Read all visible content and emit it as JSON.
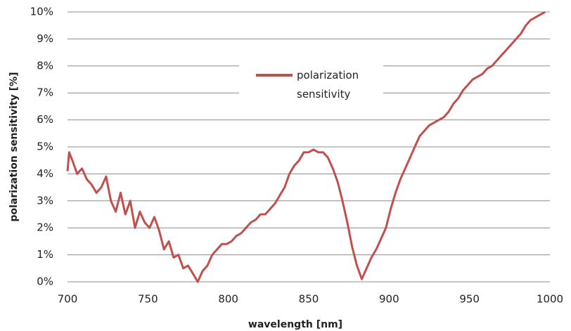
{
  "chart_data": {
    "type": "line",
    "xlabel": "wavelength [nm]",
    "ylabel": "polarization sensitivity [%]",
    "xlim": [
      700,
      1000
    ],
    "xticks": [
      700,
      750,
      800,
      850,
      900,
      950,
      1000
    ],
    "ylim": [
      0,
      10
    ],
    "yticks": [
      {
        "value": 0,
        "label": "0%"
      },
      {
        "value": 1,
        "label": "1%"
      },
      {
        "value": 2,
        "label": "2%"
      },
      {
        "value": 3,
        "label": "3%"
      },
      {
        "value": 4,
        "label": "4%"
      },
      {
        "value": 5,
        "label": "5%"
      },
      {
        "value": 6,
        "label": "6%"
      },
      {
        "value": 7,
        "label": "7%"
      },
      {
        "value": 8,
        "label": "8%"
      },
      {
        "value": 9,
        "label": "9%"
      },
      {
        "value": 10,
        "label": "10%"
      }
    ],
    "grid": true,
    "legend": "upper center",
    "x": [
      700,
      701,
      703,
      706,
      709,
      712,
      715,
      718,
      721,
      724,
      727,
      730,
      733,
      736,
      739,
      742,
      745,
      748,
      751,
      754,
      757,
      760,
      763,
      766,
      769,
      772,
      775,
      778,
      781,
      784,
      787,
      790,
      793,
      796,
      799,
      802,
      805,
      808,
      811,
      814,
      817,
      820,
      823,
      826,
      829,
      832,
      835,
      838,
      841,
      844,
      847,
      850,
      853,
      856,
      859,
      862,
      865,
      868,
      871,
      874,
      877,
      880,
      883,
      886,
      889,
      892,
      895,
      898,
      901,
      904,
      907,
      910,
      913,
      916,
      919,
      922,
      925,
      928,
      931,
      934,
      937,
      940,
      943,
      946,
      949,
      952,
      955,
      958,
      961,
      964,
      967,
      970,
      973,
      976,
      979,
      982,
      985,
      988,
      991,
      994,
      997
    ],
    "series": [
      {
        "name": "polarization sensitivity",
        "color": "#c0504d",
        "values": [
          4.1,
          4.8,
          4.5,
          4.0,
          4.2,
          3.8,
          3.6,
          3.3,
          3.5,
          3.9,
          3.0,
          2.6,
          3.3,
          2.5,
          3.0,
          2.0,
          2.6,
          2.2,
          2.0,
          2.4,
          1.9,
          1.2,
          1.5,
          0.9,
          1.0,
          0.5,
          0.6,
          0.3,
          0.0,
          0.4,
          0.6,
          1.0,
          1.2,
          1.4,
          1.4,
          1.5,
          1.7,
          1.8,
          2.0,
          2.2,
          2.3,
          2.5,
          2.5,
          2.7,
          2.9,
          3.2,
          3.5,
          4.0,
          4.3,
          4.5,
          4.8,
          4.8,
          4.9,
          4.8,
          4.8,
          4.6,
          4.2,
          3.7,
          3.0,
          2.2,
          1.3,
          0.6,
          0.1,
          0.5,
          0.9,
          1.2,
          1.6,
          2.0,
          2.7,
          3.3,
          3.8,
          4.2,
          4.6,
          5.0,
          5.4,
          5.6,
          5.8,
          5.9,
          6.0,
          6.1,
          6.3,
          6.6,
          6.8,
          7.1,
          7.3,
          7.5,
          7.6,
          7.7,
          7.9,
          8.0,
          8.2,
          8.4,
          8.6,
          8.8,
          9.0,
          9.2,
          9.5,
          9.7,
          9.8,
          9.9,
          10.0
        ]
      }
    ]
  }
}
